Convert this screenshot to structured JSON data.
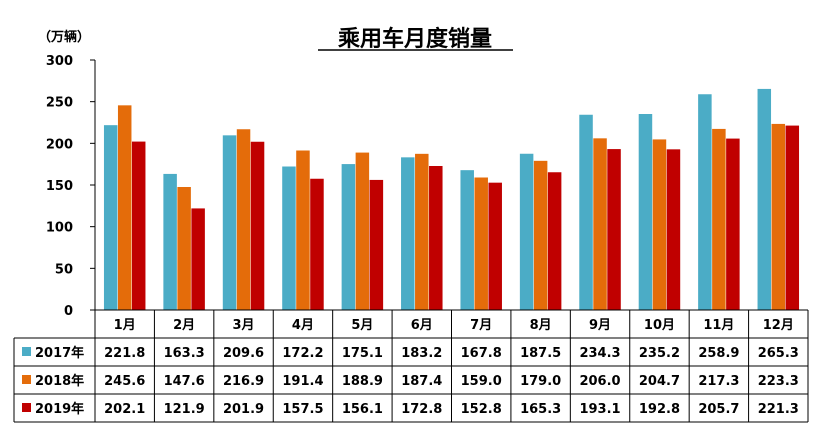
{
  "chart_data": {
    "type": "bar",
    "title": "乘用车月度销量",
    "unit": "（万辆）",
    "categories": [
      "1月",
      "2月",
      "3月",
      "4月",
      "5月",
      "6月",
      "7月",
      "8月",
      "9月",
      "10月",
      "11月",
      "12月"
    ],
    "series": [
      {
        "name": "2017年",
        "color": "#4BACC6",
        "values": [
          221.8,
          163.3,
          209.6,
          172.2,
          175.1,
          183.2,
          167.8,
          187.5,
          234.3,
          235.2,
          258.9,
          265.3
        ]
      },
      {
        "name": "2018年",
        "color": "#E46C0A",
        "values": [
          245.6,
          147.6,
          216.9,
          191.4,
          188.9,
          187.4,
          159.0,
          179.0,
          206.0,
          204.7,
          217.3,
          223.3
        ]
      },
      {
        "name": "2019年",
        "color": "#C00000",
        "values": [
          202.1,
          121.9,
          201.9,
          157.5,
          156.1,
          172.8,
          152.8,
          165.3,
          193.1,
          192.8,
          205.7,
          221.3
        ]
      }
    ],
    "yticks": [
      "0",
      "50",
      "100",
      "150",
      "200",
      "250",
      "300"
    ],
    "ylim": [
      0,
      300
    ],
    "legend": "data-table"
  }
}
